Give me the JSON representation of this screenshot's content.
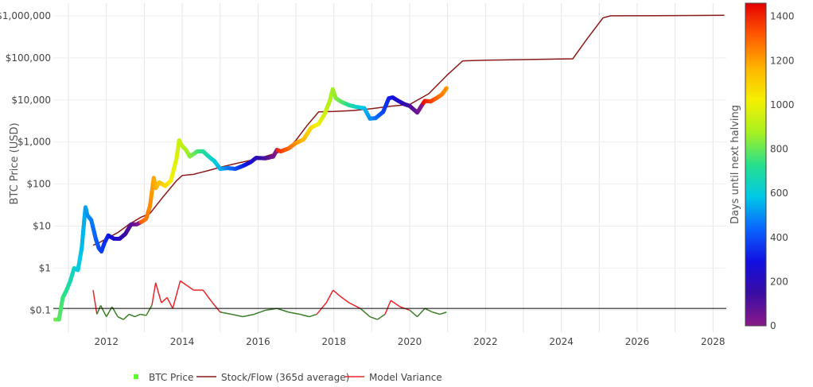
{
  "chart_data": {
    "type": "scatter",
    "title": "",
    "ylabel": "BTC Price (USD)",
    "xlabel": "",
    "y_scale": "log",
    "ylim": [
      0.03,
      2000000
    ],
    "xlim": [
      2010.6,
      2028.35
    ],
    "grid": true,
    "legend_position": "bottom",
    "x_tick_labels": [
      "2012",
      "2014",
      "2016",
      "2018",
      "2020",
      "2022",
      "2024",
      "2026",
      "2028"
    ],
    "y_tick_labels": [
      "$0.1",
      "$1",
      "$10",
      "$100",
      "$1,000",
      "$10,000",
      "$100,000",
      "$1,000,000"
    ],
    "colorbar": {
      "title": "Days until next halving",
      "range": [
        0,
        1460
      ],
      "tick_labels": [
        "0",
        "200",
        "400",
        "600",
        "800",
        "1000",
        "1200",
        "1400"
      ],
      "colors": [
        "#8b1a89",
        "#3a0ca3",
        "#1010e0",
        "#0a64ff",
        "#00c8e6",
        "#28e08c",
        "#a8f020",
        "#f5f000",
        "#ffb400",
        "#ff5a00",
        "#e60000"
      ]
    },
    "series": [
      {
        "name": "BTC Price",
        "kind": "markers",
        "colored_by": "Days until next halving",
        "points": [
          [
            2010.65,
            0.06
          ],
          [
            2010.75,
            0.06
          ],
          [
            2010.85,
            0.2
          ],
          [
            2010.95,
            0.3
          ],
          [
            2011.05,
            0.5
          ],
          [
            2011.15,
            1.0
          ],
          [
            2011.25,
            0.9
          ],
          [
            2011.35,
            3
          ],
          [
            2011.42,
            15
          ],
          [
            2011.45,
            28
          ],
          [
            2011.5,
            18
          ],
          [
            2011.6,
            14
          ],
          [
            2011.72,
            5
          ],
          [
            2011.8,
            3
          ],
          [
            2011.87,
            2.5
          ],
          [
            2011.95,
            4
          ],
          [
            2012.05,
            6
          ],
          [
            2012.2,
            5
          ],
          [
            2012.35,
            5
          ],
          [
            2012.5,
            6.5
          ],
          [
            2012.65,
            11
          ],
          [
            2012.8,
            11
          ],
          [
            2012.95,
            13
          ],
          [
            2013.05,
            15
          ],
          [
            2013.15,
            30
          ],
          [
            2013.25,
            140
          ],
          [
            2013.3,
            80
          ],
          [
            2013.4,
            110
          ],
          [
            2013.55,
            90
          ],
          [
            2013.7,
            120
          ],
          [
            2013.85,
            400
          ],
          [
            2013.92,
            1100
          ],
          [
            2014.0,
            800
          ],
          [
            2014.1,
            650
          ],
          [
            2014.2,
            450
          ],
          [
            2014.4,
            600
          ],
          [
            2014.55,
            600
          ],
          [
            2014.7,
            450
          ],
          [
            2014.85,
            350
          ],
          [
            2015.0,
            230
          ],
          [
            2015.2,
            240
          ],
          [
            2015.4,
            230
          ],
          [
            2015.6,
            270
          ],
          [
            2015.8,
            330
          ],
          [
            2015.95,
            420
          ],
          [
            2016.2,
            410
          ],
          [
            2016.4,
            450
          ],
          [
            2016.5,
            650
          ],
          [
            2016.6,
            600
          ],
          [
            2016.8,
            700
          ],
          [
            2017.0,
            950
          ],
          [
            2017.2,
            1150
          ],
          [
            2017.4,
            2200
          ],
          [
            2017.6,
            2700
          ],
          [
            2017.75,
            4500
          ],
          [
            2017.9,
            10000
          ],
          [
            2017.97,
            18000
          ],
          [
            2018.05,
            11000
          ],
          [
            2018.2,
            9000
          ],
          [
            2018.4,
            7500
          ],
          [
            2018.6,
            6800
          ],
          [
            2018.8,
            6400
          ],
          [
            2018.95,
            3600
          ],
          [
            2019.1,
            3700
          ],
          [
            2019.3,
            5200
          ],
          [
            2019.45,
            11000
          ],
          [
            2019.55,
            11500
          ],
          [
            2019.7,
            9500
          ],
          [
            2019.85,
            8000
          ],
          [
            2020.0,
            7200
          ],
          [
            2020.2,
            5000
          ],
          [
            2020.3,
            7000
          ],
          [
            2020.4,
            9500
          ],
          [
            2020.55,
            9200
          ],
          [
            2020.7,
            11000
          ],
          [
            2020.85,
            13500
          ],
          [
            2020.97,
            19000
          ]
        ]
      },
      {
        "name": "Stock/Flow (365d average)",
        "kind": "line",
        "color": "#8b1a1a",
        "points": [
          [
            2011.65,
            3.5
          ],
          [
            2011.8,
            4
          ],
          [
            2012.0,
            5
          ],
          [
            2012.3,
            7
          ],
          [
            2012.6,
            11
          ],
          [
            2012.9,
            16
          ],
          [
            2013.15,
            20
          ],
          [
            2013.5,
            50
          ],
          [
            2013.85,
            120
          ],
          [
            2014.0,
            160
          ],
          [
            2014.3,
            170
          ],
          [
            2014.7,
            210
          ],
          [
            2015.0,
            250
          ],
          [
            2015.5,
            320
          ],
          [
            2016.0,
            400
          ],
          [
            2016.5,
            550
          ],
          [
            2016.8,
            700
          ],
          [
            2017.0,
            1100
          ],
          [
            2017.3,
            2500
          ],
          [
            2017.6,
            5200
          ],
          [
            2018.0,
            5300
          ],
          [
            2018.5,
            5600
          ],
          [
            2019.0,
            6200
          ],
          [
            2019.5,
            7100
          ],
          [
            2020.0,
            7800
          ],
          [
            2020.5,
            14000
          ],
          [
            2021.0,
            40000
          ],
          [
            2021.4,
            85000
          ],
          [
            2022.0,
            88000
          ],
          [
            2023.0,
            91000
          ],
          [
            2024.3,
            95000
          ],
          [
            2024.7,
            300000
          ],
          [
            2025.1,
            900000
          ],
          [
            2025.3,
            1000000
          ],
          [
            2026.5,
            1010000
          ],
          [
            2027.5,
            1020000
          ],
          [
            2028.3,
            1030000
          ]
        ]
      },
      {
        "name": "Model Variance",
        "kind": "line",
        "color_above_baseline": "#e8262b",
        "color_below_baseline": "#3c7d28",
        "points": [
          [
            2011.65,
            0.3
          ],
          [
            2011.75,
            0.08
          ],
          [
            2011.85,
            0.13
          ],
          [
            2012.0,
            0.07
          ],
          [
            2012.15,
            0.12
          ],
          [
            2012.3,
            0.07
          ],
          [
            2012.45,
            0.06
          ],
          [
            2012.6,
            0.08
          ],
          [
            2012.75,
            0.07
          ],
          [
            2012.9,
            0.08
          ],
          [
            2013.05,
            0.075
          ],
          [
            2013.2,
            0.13
          ],
          [
            2013.3,
            0.45
          ],
          [
            2013.45,
            0.15
          ],
          [
            2013.6,
            0.2
          ],
          [
            2013.75,
            0.11
          ],
          [
            2013.95,
            0.5
          ],
          [
            2014.1,
            0.4
          ],
          [
            2014.3,
            0.3
          ],
          [
            2014.55,
            0.3
          ],
          [
            2014.8,
            0.15
          ],
          [
            2015.0,
            0.09
          ],
          [
            2015.3,
            0.08
          ],
          [
            2015.6,
            0.07
          ],
          [
            2015.9,
            0.08
          ],
          [
            2016.2,
            0.1
          ],
          [
            2016.5,
            0.11
          ],
          [
            2016.8,
            0.09
          ],
          [
            2017.1,
            0.08
          ],
          [
            2017.35,
            0.07
          ],
          [
            2017.55,
            0.08
          ],
          [
            2017.8,
            0.15
          ],
          [
            2017.98,
            0.3
          ],
          [
            2018.15,
            0.22
          ],
          [
            2018.4,
            0.15
          ],
          [
            2018.7,
            0.11
          ],
          [
            2018.95,
            0.07
          ],
          [
            2019.15,
            0.06
          ],
          [
            2019.35,
            0.08
          ],
          [
            2019.5,
            0.17
          ],
          [
            2019.75,
            0.12
          ],
          [
            2020.0,
            0.1
          ],
          [
            2020.2,
            0.07
          ],
          [
            2020.4,
            0.11
          ],
          [
            2020.6,
            0.09
          ],
          [
            2020.8,
            0.08
          ],
          [
            2020.97,
            0.09
          ]
        ]
      }
    ],
    "reference_line": {
      "y": 0.11,
      "color": "#000000"
    }
  }
}
